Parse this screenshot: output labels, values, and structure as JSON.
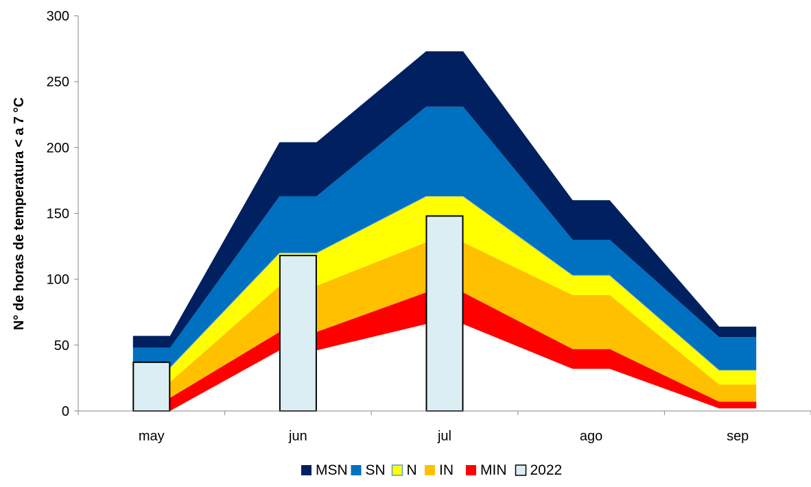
{
  "chart_data": {
    "type": "area",
    "categories": [
      "may",
      "jun",
      "jul",
      "ago",
      "sep"
    ],
    "ylabel": "N° de horas de temperatura < a 7 °C",
    "xlabel": "",
    "ylim": [
      0,
      300
    ],
    "yticks": [
      0,
      50,
      100,
      150,
      200,
      250,
      300
    ],
    "grid": false,
    "legend_position": "bottom",
    "stacked_bands": [
      {
        "name": "MIN",
        "color": "#FF0000",
        "lower": [
          0,
          0,
          0,
          0,
          0
        ],
        "upper": [
          10,
          60,
          90,
          47,
          7
        ]
      },
      {
        "name": "IN",
        "color": "#FFC000",
        "lower": [
          10,
          60,
          90,
          47,
          7
        ],
        "upper": [
          22,
          95,
          128,
          88,
          20
        ]
      },
      {
        "name": "N",
        "color": "#FFFF00",
        "lower": [
          22,
          95,
          128,
          88,
          20
        ],
        "upper": [
          33,
          120,
          163,
          103,
          31
        ]
      },
      {
        "name": "SN",
        "color": "#0070C0",
        "lower": [
          33,
          120,
          163,
          103,
          31
        ],
        "upper": [
          48,
          163,
          231,
          130,
          56
        ]
      },
      {
        "name": "MSN",
        "color": "#002060",
        "lower": [
          48,
          163,
          231,
          130,
          56
        ],
        "upper": [
          57,
          204,
          273,
          160,
          64
        ]
      }
    ],
    "floor": {
      "color": "#FFFFFF",
      "values": [
        0,
        46,
        66,
        32,
        2
      ]
    },
    "bars": {
      "name": "2022",
      "color": "#DAEEF3",
      "stroke": "#000000",
      "values": [
        37,
        118,
        148,
        null,
        null
      ]
    },
    "legend": [
      {
        "name": "MSN",
        "color": "#002060"
      },
      {
        "name": "SN",
        "color": "#0070C0"
      },
      {
        "name": "N",
        "color": "#FFFF00",
        "stroke": "#5B9BD5"
      },
      {
        "name": "IN",
        "color": "#FFC000"
      },
      {
        "name": "MIN",
        "color": "#FF0000"
      },
      {
        "name": "2022",
        "color": "#DAEEF3",
        "stroke": "#000000"
      }
    ]
  }
}
